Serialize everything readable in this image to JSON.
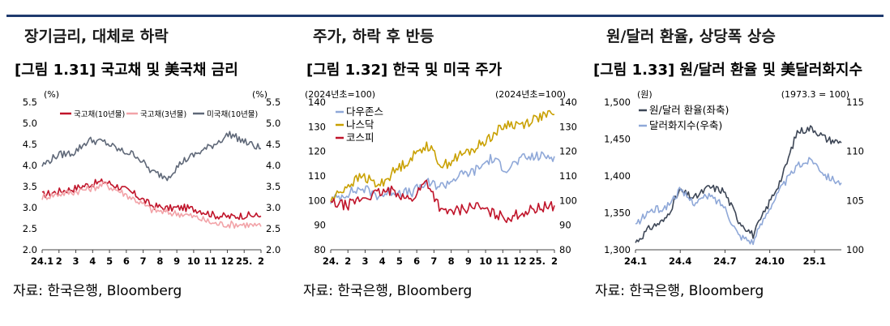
{
  "sections": [
    {
      "heading": "장기금리, 대체로 하락",
      "figure_title": "[그림 1.31] 국고채 및 美국채 금리",
      "source": "자료: 한국은행, Bloomberg"
    },
    {
      "heading": "주가, 하락 후 반등",
      "figure_title": "[그림 1.32] 한국 및 미국 주가",
      "source": "자료: 한국은행, Bloomberg"
    },
    {
      "heading": "원/달러 환율, 상당폭 상승",
      "figure_title": "[그림 1.33] 원/달러 환율 및 美달러화지수",
      "source": "자료: 한국은행, Bloomberg"
    }
  ],
  "chart_data": [
    {
      "type": "line",
      "left_unit": "(%)",
      "right_unit": "(%)",
      "ylim": [
        2.0,
        5.5
      ],
      "yticks": [
        "5.5",
        "5.0",
        "4.5",
        "4.0",
        "3.5",
        "3.0",
        "2.5",
        "2.0"
      ],
      "xticks": [
        "24.1",
        "2",
        "3",
        "4",
        "5",
        "6",
        "7",
        "8",
        "9",
        "10",
        "11",
        "12",
        "25.",
        "2"
      ],
      "x": [
        "24.1",
        "24.2",
        "24.3",
        "24.4",
        "24.5",
        "24.6",
        "24.7",
        "24.8",
        "24.9",
        "24.10",
        "24.11",
        "24.12",
        "25.1",
        "25.2",
        "25.3"
      ],
      "series": [
        {
          "name": "국고채(10년물)",
          "color": "#c0142a",
          "values": [
            3.3,
            3.38,
            3.45,
            3.55,
            3.62,
            3.48,
            3.3,
            3.05,
            2.98,
            3.0,
            2.95,
            2.82,
            2.78,
            2.82,
            2.8
          ]
        },
        {
          "name": "국고채(3년물)",
          "color": "#f2a3a8",
          "values": [
            3.25,
            3.32,
            3.37,
            3.45,
            3.55,
            3.38,
            3.18,
            2.95,
            2.88,
            2.85,
            2.75,
            2.62,
            2.6,
            2.6,
            2.55
          ]
        },
        {
          "name": "미국채(10년물)",
          "color": "#5f6878",
          "values": [
            4.0,
            4.25,
            4.3,
            4.6,
            4.55,
            4.35,
            4.25,
            3.85,
            3.72,
            4.1,
            4.3,
            4.5,
            4.75,
            4.55,
            4.4
          ]
        }
      ]
    },
    {
      "type": "line",
      "left_unit": "(2024년초=100)",
      "right_unit": "(2024년초=100)",
      "left_ylim": [
        80,
        140
      ],
      "left_yticks": [
        "140",
        "130",
        "120",
        "110",
        "100",
        "90",
        "80"
      ],
      "right_ylim": [
        80,
        140
      ],
      "right_yticks": [
        "140",
        "130",
        "120",
        "110",
        "100",
        "90",
        "80"
      ],
      "xticks": [
        "24.",
        "2",
        "3",
        "4",
        "5",
        "6",
        "7",
        "8",
        "9",
        "10",
        "11",
        "12",
        "25.",
        "2"
      ],
      "x": [
        "24.1",
        "24.2",
        "24.3",
        "24.4",
        "24.5",
        "24.6",
        "24.7",
        "24.8",
        "24.9",
        "24.10",
        "24.11",
        "24.12",
        "25.1",
        "25.2",
        "25.3"
      ],
      "series": [
        {
          "name": "다우존스",
          "color": "#8fa8d8",
          "values": [
            100,
            103,
            105,
            102,
            104,
            103,
            107,
            106,
            110,
            112,
            117,
            113,
            117,
            118,
            118
          ]
        },
        {
          "name": "나스닥",
          "color": "#c9a000",
          "values": [
            100,
            106,
            110,
            106,
            112,
            117,
            123,
            114,
            118,
            121,
            126,
            131,
            131,
            134,
            135
          ]
        },
        {
          "name": "코스피",
          "color": "#c0142a",
          "values": [
            99,
            98,
            101,
            103,
            104,
            100,
            108,
            95,
            96,
            98,
            95,
            93,
            95,
            97,
            98
          ]
        }
      ]
    },
    {
      "type": "line",
      "left_unit": "(원)",
      "right_unit": "(1973.3 = 100)",
      "left_ylim": [
        1300,
        1500
      ],
      "left_yticks": [
        "1,500",
        "1,450",
        "1,400",
        "1,350",
        "1,300"
      ],
      "right_ylim": [
        100,
        115
      ],
      "right_yticks": [
        "115",
        "110",
        "105",
        "100"
      ],
      "xticks": [
        "24.1",
        "24.4",
        "24.7",
        "24.10",
        "25.1"
      ],
      "x": [
        "24.1",
        "24.2",
        "24.3",
        "24.4",
        "24.5",
        "24.6",
        "24.7",
        "24.8",
        "24.9",
        "24.10",
        "24.11",
        "24.12",
        "25.1",
        "25.2",
        "25.3"
      ],
      "series": [
        {
          "name": "원/달러 환율(좌축)",
          "color": "#3d4656",
          "axis": "left",
          "values": [
            1310,
            1330,
            1340,
            1380,
            1370,
            1385,
            1380,
            1340,
            1320,
            1360,
            1400,
            1460,
            1465,
            1450,
            1445
          ]
        },
        {
          "name": "달러화지수(우축)",
          "color": "#8fa8d8",
          "axis": "right",
          "values": [
            102.5,
            104,
            104.2,
            106,
            104.8,
            105.5,
            104.5,
            101.5,
            100.8,
            104,
            106.5,
            108.5,
            109.2,
            107.5,
            106.8
          ]
        }
      ]
    }
  ]
}
